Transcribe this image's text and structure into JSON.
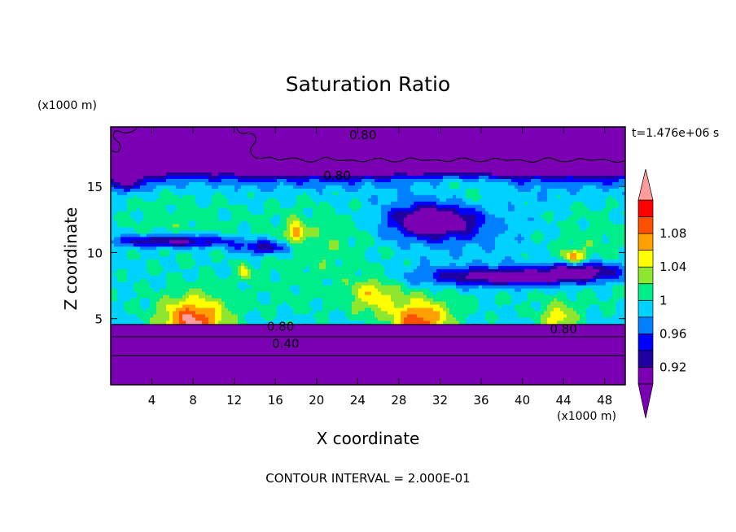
{
  "chart_data": {
    "type": "heatmap",
    "title": "Saturation Ratio",
    "xlabel": "X coordinate",
    "ylabel": "Z coordinate",
    "x_unit": "(x1000 m)",
    "y_unit": "(x1000 m)",
    "time_label": "t=1.476e+06 s",
    "footer": "CONTOUR INTERVAL = 2.000E-01",
    "xlim": [
      0,
      50
    ],
    "ylim": [
      0,
      19.5
    ],
    "x_ticks": [
      4,
      8,
      12,
      16,
      20,
      24,
      28,
      32,
      36,
      40,
      44,
      48
    ],
    "y_ticks": [
      5,
      10,
      15
    ],
    "contour_labels": [
      {
        "text": "0.80",
        "x": 24.5,
        "z": 18.9
      },
      {
        "text": "0.80",
        "x": 22.0,
        "z": 15.8
      },
      {
        "text": "0.80",
        "x": 16.5,
        "z": 4.4
      },
      {
        "text": "0.80",
        "x": 44.0,
        "z": 4.2
      },
      {
        "text": "0.40",
        "x": 17.0,
        "z": 3.1
      }
    ],
    "colorbar": {
      "levels": [
        0.9,
        0.92,
        0.94,
        0.96,
        0.98,
        1.0,
        1.02,
        1.04,
        1.06,
        1.08,
        1.1
      ],
      "labels": [
        "0.92",
        "0.96",
        "1",
        "1.04",
        "1.08"
      ],
      "colors": [
        "#7b00b4",
        "#1e00a0",
        "#0000ff",
        "#0080ff",
        "#00d2ff",
        "#00ee8a",
        "#8ee62e",
        "#ffff00",
        "#ffa000",
        "#ff5000",
        "#ff0000"
      ],
      "over_color": "#ff9c9c",
      "under_color": "#7b00b4"
    }
  }
}
